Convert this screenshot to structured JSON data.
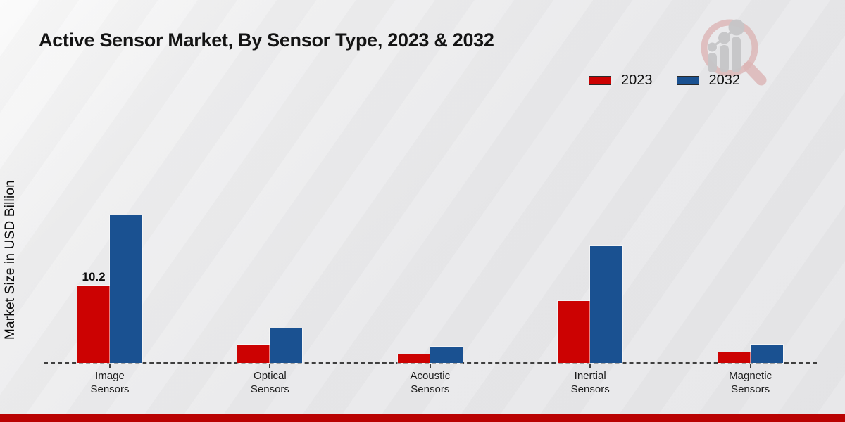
{
  "title": "Active Sensor Market, By Sensor Type, 2023 & 2032",
  "y_axis_label": "Market Size in USD Billion",
  "legend": [
    {
      "label": "2023",
      "color": "#cc0202"
    },
    {
      "label": "2032",
      "color": "#1a5191"
    }
  ],
  "colors": {
    "series_2023": "#cc0202",
    "series_2032": "#1a5191",
    "baseline": "#3f3f3f",
    "footer_strip": "#b90202",
    "logo_pink": "#d9abab",
    "logo_gray": "#c6c6c8"
  },
  "chart_data": {
    "type": "bar",
    "categories": [
      "Image Sensors",
      "Optical Sensors",
      "Acoustic Sensors",
      "Inertial Sensors",
      "Magnetic Sensors"
    ],
    "series": [
      {
        "name": "2023",
        "color": "#cc0202",
        "values": [
          10.2,
          2.4,
          1.1,
          8.2,
          1.4
        ]
      },
      {
        "name": "2032",
        "color": "#1a5191",
        "values": [
          19.5,
          4.5,
          2.1,
          15.4,
          2.4
        ]
      }
    ],
    "data_labels": [
      {
        "series": "2023",
        "category": "Image Sensors",
        "text": "10.2"
      }
    ],
    "title": "Active Sensor Market, By Sensor Type, 2023 & 2032",
    "xlabel": "",
    "ylabel": "Market Size in USD Billion",
    "ylim": [
      0,
      22
    ],
    "grid": "dashed zero baseline only",
    "legend_position": "top-right"
  }
}
